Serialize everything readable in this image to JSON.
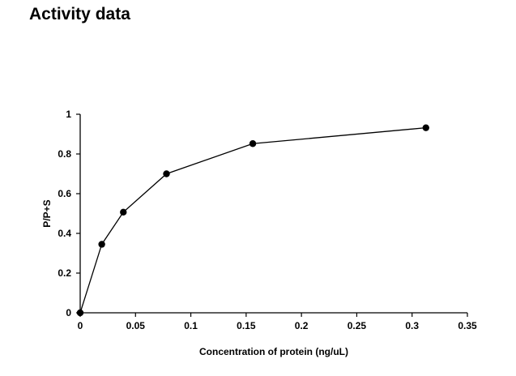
{
  "page": {
    "title": "Activity data"
  },
  "chart_data": {
    "type": "line",
    "title": "",
    "xlabel": "Concentration of protein (ng/uL)",
    "ylabel": "P/P+S",
    "xlim": [
      0,
      0.35
    ],
    "ylim": [
      0,
      1
    ],
    "x_ticks": [
      "0",
      "0.05",
      "0.1",
      "0.15",
      "0.2",
      "0.25",
      "0.3",
      "0.35"
    ],
    "y_ticks": [
      "0",
      "0.2",
      "0.4",
      "0.6",
      "0.8",
      "1"
    ],
    "grid": false,
    "legend": "none",
    "series": [
      {
        "color": "#000000",
        "marker": "circle",
        "x": [
          0,
          0.0195,
          0.039,
          0.078,
          0.156,
          0.3125
        ],
        "y": [
          0,
          0.345,
          0.507,
          0.7,
          0.852,
          0.932
        ]
      }
    ]
  }
}
